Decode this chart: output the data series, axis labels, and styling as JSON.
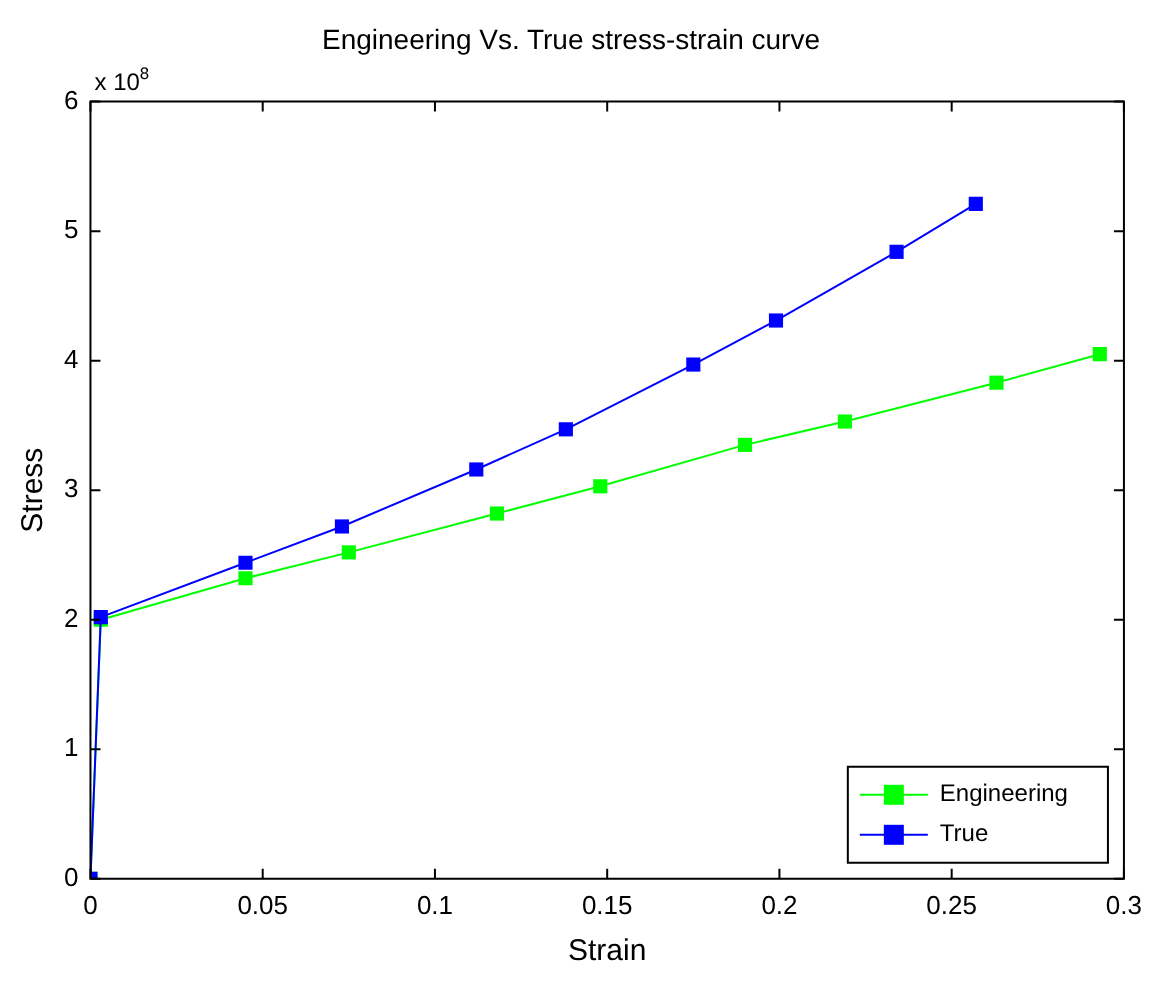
{
  "chart_data": {
    "type": "line",
    "title": "Engineering Vs. True stress-strain curve",
    "xlabel": "Strain",
    "ylabel": "Stress",
    "annotations": [
      "x 10$^{8}$"
    ],
    "xlim": [
      0,
      0.3
    ],
    "xticks": [
      0,
      0.05,
      0.1,
      0.15,
      0.2,
      0.25,
      0.3
    ],
    "ylim": [
      0,
      6
    ],
    "yticks": [
      0,
      1,
      2,
      3,
      4,
      5,
      6
    ],
    "grid": false,
    "legend": "bottom right",
    "marker": "square",
    "line_style": "solid",
    "series": [
      {
        "name": "Engineering",
        "color": "#00ff00",
        "x": [
          0,
          0.003,
          0.045,
          0.075,
          0.118,
          0.148,
          0.19,
          0.219,
          0.263,
          0.293
        ],
        "values": [
          0,
          2.0,
          2.32,
          2.52,
          2.82,
          3.03,
          3.35,
          3.53,
          3.83,
          4.05
        ]
      },
      {
        "name": "True",
        "color": "#0000ff",
        "x": [
          0,
          0.003,
          0.045,
          0.073,
          0.112,
          0.138,
          0.175,
          0.199,
          0.234,
          0.257
        ],
        "values": [
          0,
          2.02,
          2.44,
          2.72,
          3.16,
          3.47,
          3.97,
          4.31,
          4.84,
          5.21
        ]
      }
    ]
  }
}
